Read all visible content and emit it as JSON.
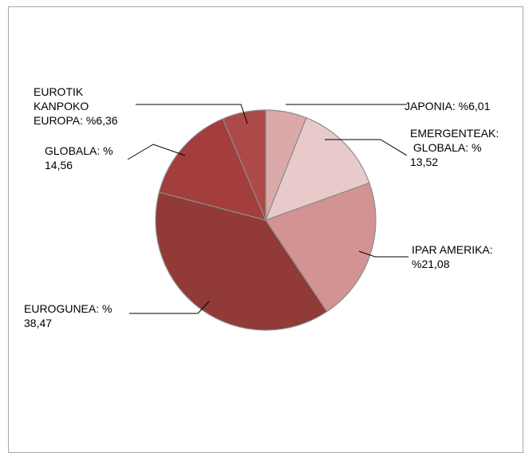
{
  "chart_data": {
    "type": "pie",
    "title": "",
    "slices": [
      {
        "name": "JAPONIA",
        "value": 6.01,
        "color": "#dba9a9",
        "label_lines": [
          "JAPONIA: %6,01"
        ]
      },
      {
        "name": "EMERGENTEAK: GLOBALA",
        "value": 13.52,
        "color": "#e8cacb",
        "label_lines": [
          "EMERGENTEAK:",
          " GLOBALA: %",
          "13,52"
        ]
      },
      {
        "name": "IPAR AMERIKA",
        "value": 21.08,
        "color": "#d39393",
        "label_lines": [
          "IPAR AMERIKA:",
          "%21,08"
        ]
      },
      {
        "name": "EUROGUNEA",
        "value": 38.47,
        "color": "#913a38",
        "label_lines": [
          "EUROGUNEA: %",
          "38,47"
        ]
      },
      {
        "name": "GLOBALA",
        "value": 14.56,
        "color": "#a33e3d",
        "label_lines": [
          "GLOBALA: %",
          "14,56"
        ]
      },
      {
        "name": "EUROTIK KANPOKO EUROPA",
        "value": 6.36,
        "color": "#ad4a49",
        "label_lines": [
          "EUROTIK",
          "KANPOKO",
          "EUROPA: %6,36"
        ]
      }
    ],
    "start_angle": "12 o'clock",
    "direction": "clockwise",
    "legend": "none, labels with leader lines"
  }
}
